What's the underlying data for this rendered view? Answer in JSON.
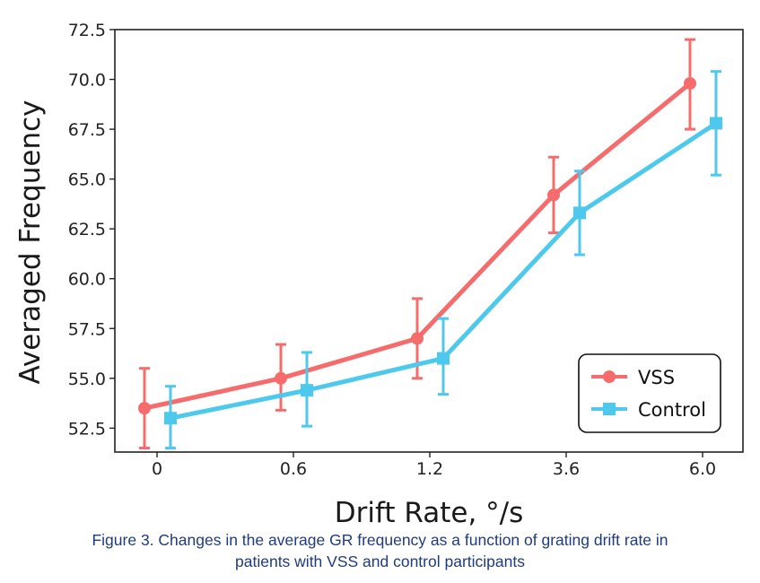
{
  "chart_data": {
    "type": "line",
    "xlabel": "Drift Rate, °/s",
    "ylabel": "Averaged Frequency",
    "categories": [
      "0",
      "0.6",
      "1.2",
      "3.6",
      "6.0"
    ],
    "ylim": [
      51.3,
      72.5
    ],
    "yticks": [
      "52.5",
      "55.0",
      "57.5",
      "60.0",
      "62.5",
      "65.0",
      "67.5",
      "70.0",
      "72.5"
    ],
    "grid": false,
    "legend_position": "lower-right",
    "series": [
      {
        "name": "VSS",
        "color": "#f66b6b",
        "marker": "circle",
        "values": [
          53.5,
          55.0,
          57.0,
          64.2,
          69.8
        ],
        "error_low": [
          51.5,
          53.4,
          55.0,
          62.3,
          67.5
        ],
        "error_high": [
          55.5,
          56.7,
          59.0,
          66.1,
          72.0
        ]
      },
      {
        "name": "Control",
        "color": "#4dc9ee",
        "marker": "square",
        "values": [
          53.0,
          54.4,
          56.0,
          63.3,
          67.8
        ],
        "error_low": [
          51.5,
          52.6,
          54.2,
          61.2,
          65.2
        ],
        "error_high": [
          54.6,
          56.3,
          58.0,
          65.4,
          70.4
        ]
      }
    ]
  },
  "caption": {
    "line1": "Figure 3. Changes in the average GR frequency as a function of grating drift rate in",
    "line2": "patients with VSS and control participants"
  }
}
